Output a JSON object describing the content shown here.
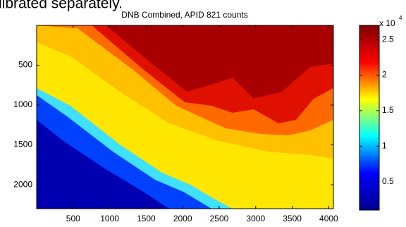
{
  "header_fragment": "librated separately.",
  "chart_data": {
    "type": "heatmap",
    "title": "DNB Combined, APID 821 counts",
    "xlim": [
      0,
      4064
    ],
    "xticks": [
      500,
      1000,
      1500,
      2000,
      2500,
      3000,
      3500,
      4000
    ],
    "ylim": [
      0,
      2300
    ],
    "yticks": [
      500,
      1000,
      1500,
      2000
    ],
    "y_reversed": true,
    "colormap": [
      "#00008f",
      "#0000ff",
      "#00ffff",
      "#ffff00",
      "#ff0000",
      "#800000"
    ],
    "clim": [
      0.1,
      2.7
    ],
    "cticks": [
      0.5,
      1,
      1.5,
      2,
      2.5
    ],
    "colorbar_multiplier": {
      "base": "x 10",
      "exponent": "4"
    }
  }
}
